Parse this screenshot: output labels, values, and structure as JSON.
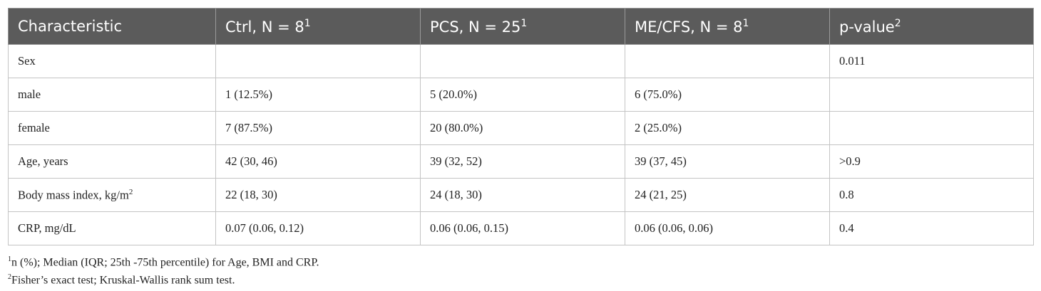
{
  "table": {
    "header": [
      {
        "text": "Characteristic"
      },
      {
        "text": "Ctrl, N = 8",
        "sup": "1"
      },
      {
        "text": "PCS, N = 25",
        "sup": "1"
      },
      {
        "text": "ME/CFS, N = 8",
        "sup": "1"
      },
      {
        "text": "p-value",
        "sup": "2"
      }
    ],
    "rows": [
      [
        {
          "text": "Sex"
        },
        null,
        null,
        null,
        {
          "text": "0.011"
        }
      ],
      [
        {
          "text": "male"
        },
        {
          "text": "1 (12.5%)"
        },
        {
          "text": "5 (20.0%)"
        },
        {
          "text": "6 (75.0%)"
        },
        null
      ],
      [
        {
          "text": "female"
        },
        {
          "text": "7 (87.5%)"
        },
        {
          "text": "20 (80.0%)"
        },
        {
          "text": "2 (25.0%)"
        },
        null
      ],
      [
        {
          "text": "Age, years"
        },
        {
          "text": "42 (30, 46)"
        },
        {
          "text": "39 (32, 52)"
        },
        {
          "text": "39 (37, 45)"
        },
        {
          "text": ">0.9"
        }
      ],
      [
        {
          "text": "Body mass index, kg/m",
          "sup": "2"
        },
        {
          "text": "22 (18, 30)"
        },
        {
          "text": "24 (18, 30)"
        },
        {
          "text": "24 (21, 25)"
        },
        {
          "text": "0.8"
        }
      ],
      [
        {
          "text": "CRP, mg/dL"
        },
        {
          "text": "0.07 (0.06, 0.12)"
        },
        {
          "text": "0.06 (0.06, 0.15)"
        },
        {
          "text": "0.06 (0.06, 0.06)"
        },
        {
          "text": "0.4"
        }
      ]
    ],
    "footnotes": [
      {
        "sup": "1",
        "text": "n (%); Median (IQR; 25th -75th percentile) for Age, BMI and CRP."
      },
      {
        "sup": "2",
        "text": "Fisher’s exact test; Kruskal-Wallis rank sum test."
      }
    ]
  }
}
